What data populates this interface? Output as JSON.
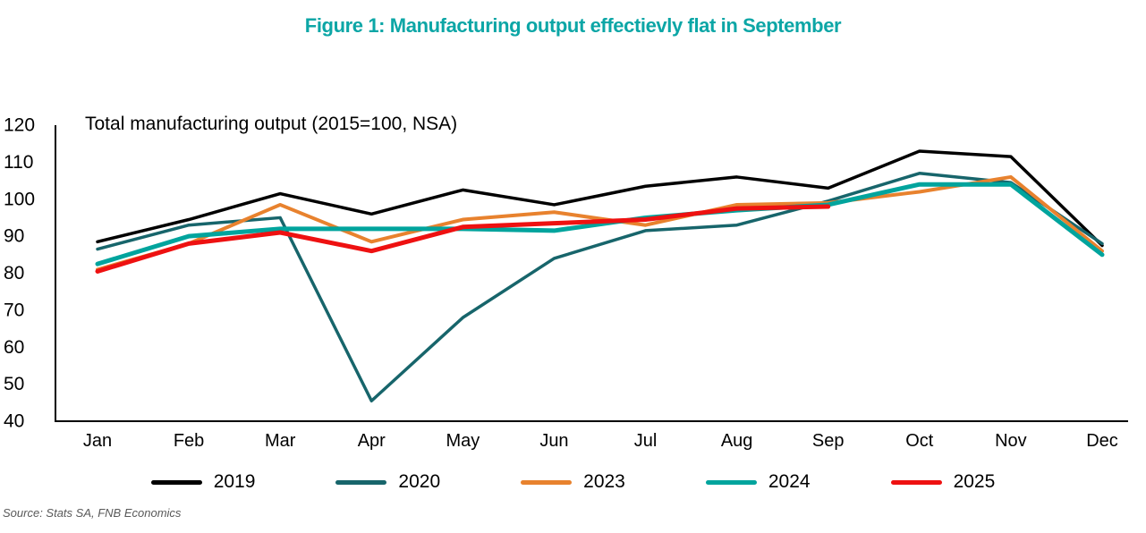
{
  "page": {
    "title": "Figure 1: Manufacturing output effectievly flat in September",
    "subtitle": "Total manufacturing output (2015=100, NSA)",
    "source": "Source: Stats SA, FNB Economics"
  },
  "colors": {
    "title_teal": "#0ca6a6",
    "axis_black": "#000000",
    "source_gray": "#595959"
  },
  "chart_data": {
    "type": "line",
    "title": "Figure 1: Manufacturing output effectievly flat in September",
    "inner_label": "Total manufacturing output (2015=100, NSA)",
    "categories": [
      "Jan",
      "Feb",
      "Mar",
      "Apr",
      "May",
      "Jun",
      "Jul",
      "Aug",
      "Sep",
      "Oct",
      "Nov",
      "Dec"
    ],
    "xlabel": "",
    "ylabel": "",
    "ylim": [
      40,
      120
    ],
    "y_ticks": [
      120,
      110,
      100,
      90,
      80,
      70,
      60,
      50,
      40
    ],
    "grid": false,
    "legend_position": "bottom",
    "series": [
      {
        "name": "2019",
        "color": "#000000",
        "line_width": 3.5,
        "values": [
          88.5,
          94.5,
          101.5,
          96,
          102.5,
          98.5,
          103.5,
          106,
          103,
          113,
          111.5,
          87.5
        ]
      },
      {
        "name": "2020",
        "color": "#17656b",
        "line_width": 3.5,
        "values": [
          86.5,
          93,
          95,
          45.5,
          68,
          84,
          91.5,
          93,
          99.5,
          107,
          104.5,
          88
        ]
      },
      {
        "name": "2023",
        "color": "#e8822e",
        "line_width": 4,
        "values": [
          81,
          88,
          98.5,
          88.5,
          94.5,
          96.5,
          93,
          98.5,
          99,
          102,
          106,
          86
        ]
      },
      {
        "name": "2024",
        "color": "#00a49d",
        "line_width": 5,
        "values": [
          82.5,
          90,
          92,
          92,
          92,
          91.5,
          95,
          97,
          98.5,
          104,
          104,
          85
        ]
      },
      {
        "name": "2025",
        "color": "#ee1111",
        "line_width": 5,
        "values": [
          80.5,
          88,
          91,
          86,
          92.5,
          93.5,
          94.5,
          97.5,
          98
        ]
      }
    ]
  }
}
